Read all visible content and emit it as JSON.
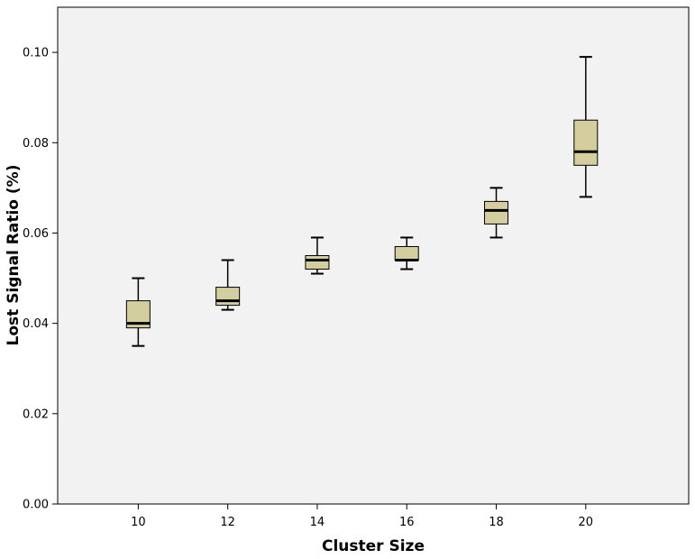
{
  "chart_data": {
    "type": "box",
    "xlabel": "Cluster Size",
    "ylabel": "Lost Signal Ratio (%)",
    "ylim": [
      0,
      0.11
    ],
    "yticks": [
      "0.00",
      "0.02",
      "0.04",
      "0.06",
      "0.08",
      "0.10"
    ],
    "xlim": [
      8.2,
      22.3
    ],
    "categories": [
      "10",
      "12",
      "14",
      "16",
      "18",
      "20"
    ],
    "boxes": [
      {
        "x": 10,
        "min": 0.035,
        "q1": 0.039,
        "median": 0.04,
        "q3": 0.045,
        "max": 0.05
      },
      {
        "x": 12,
        "min": 0.043,
        "q1": 0.044,
        "median": 0.045,
        "q3": 0.048,
        "max": 0.054
      },
      {
        "x": 14,
        "min": 0.051,
        "q1": 0.052,
        "median": 0.054,
        "q3": 0.055,
        "max": 0.059
      },
      {
        "x": 16,
        "min": 0.052,
        "q1": 0.054,
        "median": 0.054,
        "q3": 0.057,
        "max": 0.059
      },
      {
        "x": 18,
        "min": 0.059,
        "q1": 0.062,
        "median": 0.065,
        "q3": 0.067,
        "max": 0.07
      },
      {
        "x": 20,
        "min": 0.068,
        "q1": 0.075,
        "median": 0.078,
        "q3": 0.085,
        "max": 0.099
      }
    ],
    "grid": false,
    "colors": {
      "plot_background": "#f2f2f2",
      "box_fill": "#d4cd9e",
      "line": "#000000"
    }
  }
}
